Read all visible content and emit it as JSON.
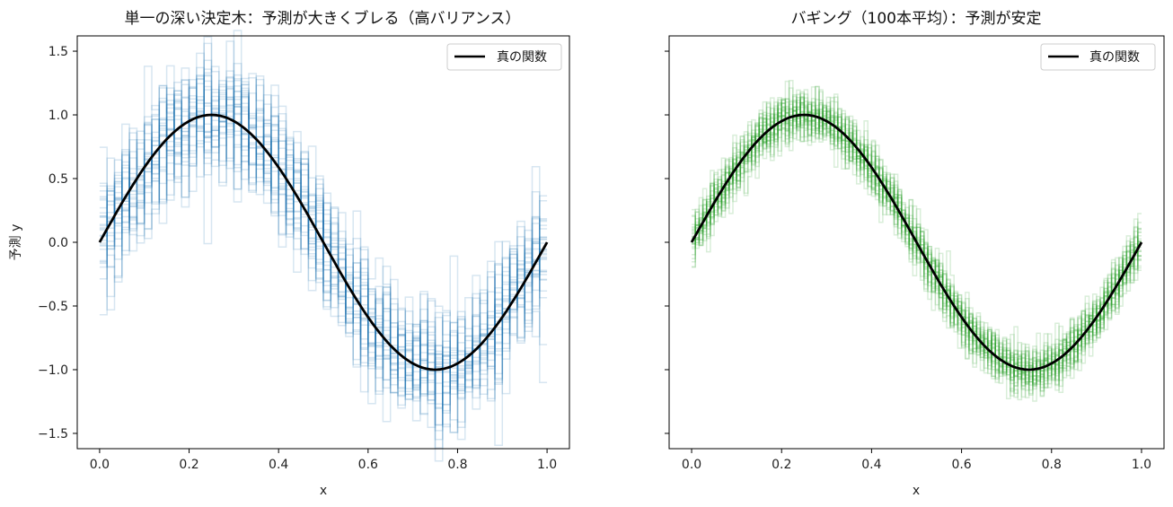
{
  "chart_data": [
    {
      "type": "line",
      "title": "単一の深い決定木：予測が大きくブレる（高バリアンス）",
      "xlabel": "x",
      "ylabel": "予測 y",
      "xlim": [
        -0.05,
        1.05
      ],
      "ylim": [
        -1.62,
        1.62
      ],
      "xticks": [
        "0.0",
        "0.2",
        "0.4",
        "0.6",
        "0.8",
        "1.0"
      ],
      "yticks": [
        "-1.5",
        "-1.0",
        "-0.5",
        "0.0",
        "0.5",
        "1.0",
        "1.5"
      ],
      "grid": false,
      "legend": {
        "placement": "top-right",
        "entries": [
          "真の関数"
        ]
      },
      "series": [
        {
          "name": "真の関数",
          "function": "sin(2πx)",
          "x_range": [
            0,
            1
          ],
          "color": "#000000"
        },
        {
          "style": "step",
          "count": 30,
          "color": "#1f77b4",
          "alpha": 0.18,
          "noise": 0.25,
          "bins": 60,
          "centered_on": "sin(2πx)"
        }
      ]
    },
    {
      "type": "line",
      "title": "バギング（100本平均）：予測が安定",
      "xlabel": "x",
      "ylabel": "",
      "xlim": [
        -0.05,
        1.05
      ],
      "ylim": [
        -1.62,
        1.62
      ],
      "xticks": [
        "0.0",
        "0.2",
        "0.4",
        "0.6",
        "0.8",
        "1.0"
      ],
      "yticks": [],
      "grid": false,
      "legend": {
        "placement": "top-right",
        "entries": [
          "真の関数"
        ]
      },
      "series": [
        {
          "name": "真の関数",
          "function": "sin(2πx)",
          "x_range": [
            0,
            1
          ],
          "color": "#000000"
        },
        {
          "style": "step",
          "count": 30,
          "color": "#2ca02c",
          "alpha": 0.18,
          "noise": 0.1,
          "bins": 120,
          "centered_on": "sin(2πx)"
        }
      ]
    }
  ]
}
